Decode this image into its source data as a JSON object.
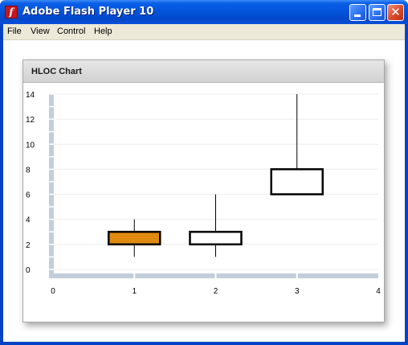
{
  "window": {
    "title": "Adobe Flash Player 10",
    "icon": "flash-f-icon"
  },
  "menu": [
    "File",
    "View",
    "Control",
    "Help"
  ],
  "panel": {
    "title": "HLOC Chart"
  },
  "colors": {
    "up_fill": "#e08a12",
    "down_fill": "#ffffff",
    "axis_band": "#c2ceda"
  },
  "chart_data": {
    "type": "hloc",
    "title": "HLOC Chart",
    "xlim": [
      0,
      4
    ],
    "ylim": [
      0,
      14
    ],
    "x_ticks": [
      "0",
      "1",
      "2",
      "3",
      "4"
    ],
    "y_ticks": [
      "0",
      "2",
      "4",
      "6",
      "8",
      "10",
      "12",
      "14"
    ],
    "series": [
      {
        "x": 1,
        "open": 2,
        "high": 4,
        "low": 1,
        "close": 3,
        "fill": "#e08a12"
      },
      {
        "x": 2,
        "open": 3,
        "high": 6,
        "low": 1,
        "close": 2,
        "fill": "#ffffff"
      },
      {
        "x": 3,
        "open": 8,
        "high": 14,
        "low": 6,
        "close": 6,
        "fill": "#ffffff"
      }
    ]
  }
}
